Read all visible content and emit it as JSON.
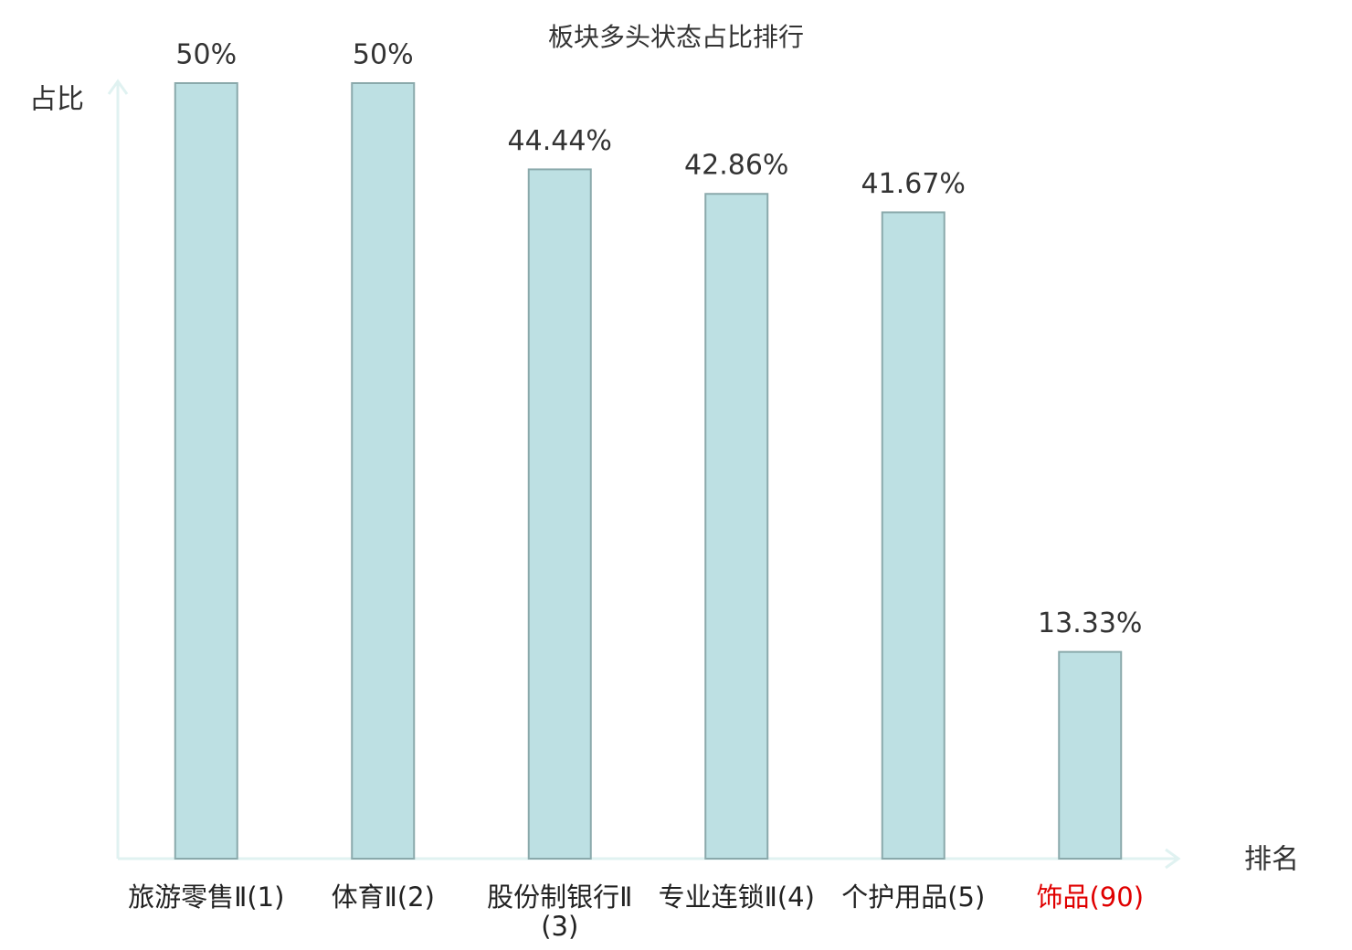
{
  "chart_data": {
    "type": "bar",
    "title": "板块多头状态占比排行",
    "y_label": "占比",
    "x_label": "排名",
    "categories": [
      "旅游零售Ⅱ(1)",
      "体育Ⅱ(2)",
      "股份制银行Ⅱ(3)",
      "专业连锁Ⅱ(4)",
      "个护用品(5)",
      "饰品(90)"
    ],
    "label_colors": [
      "#222222",
      "#222222",
      "#222222",
      "#222222",
      "#222222",
      "#e00000"
    ],
    "values": [
      50,
      50,
      44.44,
      42.86,
      41.67,
      13.33
    ],
    "value_labels": [
      "50%",
      "50%",
      "44.44%",
      "42.86%",
      "41.67%",
      "13.33%"
    ],
    "color": "#bde0e3",
    "edge_color": "#8aa9ab",
    "axis_color": "#e0f2f1",
    "ylim": [
      0,
      50
    ]
  }
}
